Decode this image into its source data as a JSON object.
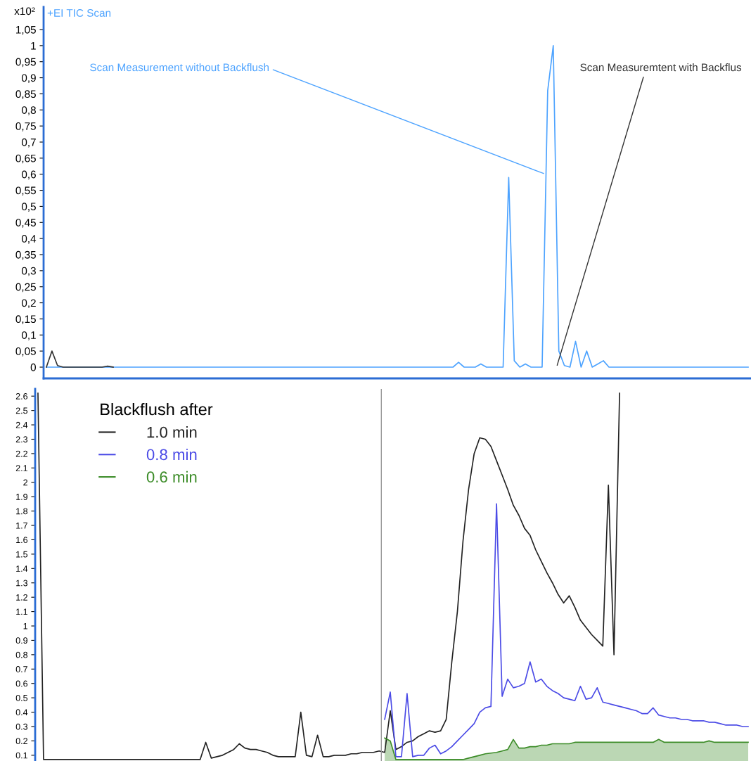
{
  "chart_data": [
    {
      "type": "line",
      "title": "+EI TIC Scan",
      "ylabel": "x10²",
      "categories": [
        null,
        null,
        null,
        null,
        null,
        null,
        null,
        null,
        null,
        null,
        null,
        null,
        null,
        null,
        null,
        null,
        null,
        null,
        null,
        null,
        null,
        null,
        null,
        null,
        null,
        null,
        null,
        null,
        null,
        null,
        null,
        null,
        null,
        null,
        null,
        null,
        null,
        null,
        null,
        null,
        null,
        null,
        null,
        null,
        null,
        null,
        null,
        null,
        null,
        null,
        null,
        null,
        null,
        null,
        null,
        null,
        null,
        null,
        null,
        null,
        null,
        null,
        null,
        null,
        null,
        null,
        null,
        null,
        null,
        null,
        null,
        null,
        null,
        null,
        null,
        null,
        null,
        null,
        null,
        null,
        null,
        null,
        null,
        null,
        null,
        null,
        null,
        null,
        null,
        null,
        null,
        null,
        null,
        null,
        null,
        null,
        null,
        null,
        null,
        null,
        null,
        null,
        null,
        null,
        null,
        null,
        null,
        null,
        null,
        null,
        null,
        null,
        null,
        null,
        null,
        null,
        null,
        null,
        null,
        null,
        null,
        null,
        null,
        null,
        null,
        null,
        null
      ],
      "series": [
        {
          "color": "#4da3ff",
          "values": [
            0,
            0,
            0,
            0,
            0,
            0,
            0,
            0,
            0,
            0,
            0,
            0,
            0,
            0,
            0,
            0,
            0,
            0,
            0,
            0,
            0,
            0,
            0,
            0,
            0,
            0,
            0,
            0,
            0,
            0,
            0,
            0,
            0,
            0,
            0,
            0,
            0,
            0,
            0,
            0,
            0,
            0,
            0,
            0,
            0,
            0,
            0,
            0,
            0,
            0,
            0,
            0,
            0,
            0,
            0,
            0,
            0,
            0,
            0,
            0,
            0,
            0,
            0,
            0,
            0,
            0,
            0,
            0,
            0,
            0,
            0,
            0,
            0,
            0,
            0.015,
            0,
            0,
            0,
            0.01,
            0,
            0,
            0,
            0,
            0.59,
            0.02,
            0,
            0.01,
            0,
            0,
            0,
            0.86,
            1.0,
            0.05,
            0.005,
            0,
            0.08,
            0,
            0.05,
            0,
            0.01,
            0.02,
            0,
            0,
            0,
            0,
            0,
            0,
            0,
            0,
            0,
            0,
            0,
            0,
            0,
            0,
            0,
            0,
            0,
            0,
            0,
            0,
            0,
            0,
            0,
            0,
            0,
            0
          ]
        },
        {
          "color": "#333333",
          "values": [
            0,
            0.05,
            0.005,
            0,
            0,
            0,
            0,
            0,
            0,
            0,
            0,
            0.003,
            0,
            null,
            null,
            null,
            null,
            null,
            null,
            null,
            null,
            null,
            null,
            null,
            null,
            null,
            null,
            null,
            null,
            null,
            null,
            null,
            null,
            null,
            null,
            null,
            null,
            null,
            null,
            null,
            null,
            null,
            null,
            null,
            null,
            null,
            null,
            null,
            null,
            null,
            null,
            null,
            null,
            null,
            null,
            null,
            null,
            null,
            null,
            null,
            null,
            null,
            null,
            null,
            null,
            null,
            null,
            null,
            null,
            null,
            null,
            null,
            null,
            null,
            null,
            null,
            null,
            null,
            null,
            null,
            null,
            null,
            null,
            null,
            null,
            null,
            null,
            null,
            null,
            null,
            null,
            null,
            null,
            null,
            null,
            null,
            null,
            null,
            null,
            null,
            null,
            null,
            null,
            null,
            null,
            null,
            null,
            null,
            null,
            null,
            null,
            null,
            null,
            null,
            null,
            null,
            null,
            null,
            null,
            null,
            null,
            null,
            null,
            null,
            null,
            null,
            null
          ]
        }
      ],
      "ylim": [
        -0.035,
        1.12
      ],
      "yticks": [
        0,
        {
          "value": 0.05,
          "label": "0,05"
        },
        {
          "value": 0.1,
          "label": "0,1"
        },
        {
          "value": 0.15,
          "label": "0,15"
        },
        {
          "value": 0.2,
          "label": "0,2"
        },
        {
          "value": 0.25,
          "label": "0,25"
        },
        {
          "value": 0.3,
          "label": "0,3"
        },
        {
          "value": 0.35,
          "label": "0,35"
        },
        {
          "value": 0.4,
          "label": "0,4"
        },
        {
          "value": 0.45,
          "label": "0,45"
        },
        {
          "value": 0.5,
          "label": "0,5"
        },
        {
          "value": 0.55,
          "label": "0,55"
        },
        {
          "value": 0.6,
          "label": "0,6"
        },
        {
          "value": 0.65,
          "label": "0,65"
        },
        {
          "value": 0.7,
          "label": "0,7"
        },
        {
          "value": 0.75,
          "label": "0,75"
        },
        {
          "value": 0.8,
          "label": "0,8"
        },
        {
          "value": 0.85,
          "label": "0,85"
        },
        {
          "value": 0.9,
          "label": "0,9"
        },
        {
          "value": 0.95,
          "label": "0,95"
        },
        1,
        {
          "value": 1.05,
          "label": "1,05"
        }
      ],
      "annotations": [
        "Scan Measurement without Backflush",
        "Scan Measuremtent with Backflus"
      ],
      "tick_labels": "y",
      "grid": false,
      "legend": false
    },
    {
      "type": "line",
      "legend_title": "Blackflush after",
      "categories": [
        null,
        null,
        null,
        null,
        null,
        null,
        null,
        null,
        null,
        null,
        null,
        null,
        null,
        null,
        null,
        null,
        null,
        null,
        null,
        null,
        null,
        null,
        null,
        null,
        null,
        null,
        null,
        null,
        null,
        null,
        null,
        null,
        null,
        null,
        null,
        null,
        null,
        null,
        null,
        null,
        null,
        null,
        null,
        null,
        null,
        null,
        null,
        null,
        null,
        null,
        null,
        null,
        null,
        null,
        null,
        null,
        null,
        null,
        null,
        null,
        null,
        null,
        null,
        null,
        null,
        null,
        null,
        null,
        null,
        null,
        null,
        null,
        null,
        null,
        null,
        null,
        null,
        null,
        null,
        null,
        null,
        null,
        null,
        null,
        null,
        null,
        null,
        null,
        null,
        null,
        null,
        null,
        null,
        null,
        null,
        null,
        null,
        null,
        null,
        null,
        null,
        null,
        null,
        null,
        null,
        null,
        null,
        null,
        null,
        null,
        null,
        null,
        null,
        null,
        null,
        null,
        null,
        null,
        null,
        null,
        null,
        null,
        null,
        null,
        null,
        null,
        null,
        null
      ],
      "series": [
        {
          "name": "1.0 min",
          "color": "#222222",
          "values": [
            2.62,
            0.07,
            0.07,
            0.07,
            0.07,
            0.07,
            0.07,
            0.07,
            0.07,
            0.07,
            0.07,
            0.07,
            0.07,
            0.07,
            0.07,
            0.07,
            0.07,
            0.07,
            0.07,
            0.07,
            0.07,
            0.07,
            0.07,
            0.07,
            0.07,
            0.07,
            0.07,
            0.07,
            0.07,
            0.07,
            0.19,
            0.08,
            0.09,
            0.1,
            0.12,
            0.14,
            0.18,
            0.15,
            0.14,
            0.14,
            0.13,
            0.12,
            0.1,
            0.09,
            0.09,
            0.09,
            0.09,
            0.4,
            0.1,
            0.09,
            0.24,
            0.09,
            0.09,
            0.1,
            0.1,
            0.1,
            0.11,
            0.11,
            0.12,
            0.12,
            0.12,
            0.13,
            0.12,
            0.41,
            0.14,
            0.16,
            0.19,
            0.2,
            0.23,
            0.25,
            0.27,
            0.26,
            0.27,
            0.35,
            0.75,
            1.1,
            1.59,
            1.95,
            2.2,
            2.31,
            2.3,
            2.25,
            2.15,
            2.05,
            1.95,
            1.84,
            1.77,
            1.68,
            1.63,
            1.53,
            1.45,
            1.37,
            1.3,
            1.22,
            1.16,
            1.21,
            1.13,
            1.04,
            0.99,
            0.94,
            0.9,
            0.86,
            1.98,
            0.8,
            2.62,
            null,
            null,
            null,
            null,
            null,
            null,
            null,
            null,
            null,
            null,
            null,
            null,
            null,
            null,
            null,
            null,
            null,
            null,
            null,
            null,
            null,
            null,
            null
          ]
        },
        {
          "name": "0.8 min",
          "color": "#4b4be6",
          "values": [
            null,
            null,
            null,
            null,
            null,
            null,
            null,
            null,
            null,
            null,
            null,
            null,
            null,
            null,
            null,
            null,
            null,
            null,
            null,
            null,
            null,
            null,
            null,
            null,
            null,
            null,
            null,
            null,
            null,
            null,
            null,
            null,
            null,
            null,
            null,
            null,
            null,
            null,
            null,
            null,
            null,
            null,
            null,
            null,
            null,
            null,
            null,
            null,
            null,
            null,
            null,
            null,
            null,
            null,
            null,
            null,
            null,
            null,
            null,
            null,
            null,
            null,
            0.35,
            0.54,
            0.09,
            0.09,
            0.53,
            0.09,
            0.1,
            0.1,
            0.15,
            0.17,
            0.11,
            0.13,
            0.16,
            0.2,
            0.24,
            0.28,
            0.32,
            0.4,
            0.43,
            0.44,
            1.85,
            0.51,
            0.63,
            0.57,
            0.58,
            0.6,
            0.75,
            0.61,
            0.63,
            0.58,
            0.55,
            0.53,
            0.5,
            0.49,
            0.48,
            0.58,
            0.49,
            0.5,
            0.57,
            0.47,
            0.46,
            0.45,
            0.44,
            0.43,
            0.42,
            0.41,
            0.39,
            0.39,
            0.43,
            0.38,
            0.37,
            0.36,
            0.36,
            0.35,
            0.35,
            0.34,
            0.34,
            0.34,
            0.33,
            0.33,
            0.32,
            0.31,
            0.31,
            0.31,
            0.3,
            0.3
          ]
        },
        {
          "name": "0.6 min",
          "type": "area",
          "color": "#3c8c28",
          "values": [
            null,
            null,
            null,
            null,
            null,
            null,
            null,
            null,
            null,
            null,
            null,
            null,
            null,
            null,
            null,
            null,
            null,
            null,
            null,
            null,
            null,
            null,
            null,
            null,
            null,
            null,
            null,
            null,
            null,
            null,
            null,
            null,
            null,
            null,
            null,
            null,
            null,
            null,
            null,
            null,
            null,
            null,
            null,
            null,
            null,
            null,
            null,
            null,
            null,
            null,
            null,
            null,
            null,
            null,
            null,
            null,
            null,
            null,
            null,
            null,
            null,
            null,
            0.22,
            0.2,
            0.07,
            0.07,
            0.07,
            0.07,
            0.07,
            0.07,
            0.07,
            0.07,
            0.07,
            0.07,
            0.07,
            0.07,
            0.07,
            0.08,
            0.09,
            0.1,
            0.11,
            0.115,
            0.12,
            0.13,
            0.14,
            0.21,
            0.15,
            0.15,
            0.16,
            0.16,
            0.17,
            0.17,
            0.18,
            0.18,
            0.18,
            0.18,
            0.19,
            0.19,
            0.19,
            0.19,
            0.19,
            0.19,
            0.19,
            0.19,
            0.19,
            0.19,
            0.19,
            0.19,
            0.19,
            0.19,
            0.19,
            0.21,
            0.19,
            0.19,
            0.19,
            0.19,
            0.19,
            0.19,
            0.19,
            0.19,
            0.2,
            0.19,
            0.19,
            0.19,
            0.19,
            0.19,
            0.19,
            0.19
          ]
        }
      ],
      "ylim": [
        0.06,
        2.65
      ],
      "yticks": [
        0.1,
        0.2,
        0.3,
        0.4,
        0.5,
        0.6,
        0.7,
        0.8,
        0.9,
        1,
        1.1,
        1.2,
        1.3,
        1.4,
        1.5,
        1.6,
        1.7,
        1.8,
        1.9,
        2,
        2.1,
        2.2,
        2.3,
        2.4,
        2.5,
        2.6
      ],
      "tick_labels": "y",
      "grid": false,
      "legend": "top left"
    }
  ]
}
